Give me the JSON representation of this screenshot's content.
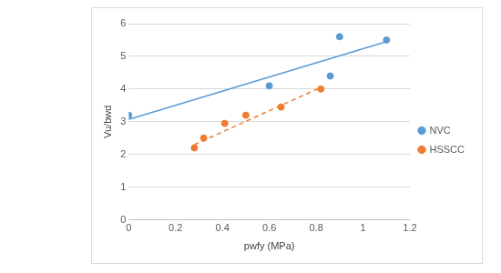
{
  "chart_data": {
    "type": "scatter",
    "x_label": "pwfy (MPa)",
    "y_label": "Vu/bwd",
    "xlim": [
      0,
      1.2
    ],
    "xticks": [
      0,
      0.2,
      0.4,
      0.6,
      0.8,
      1,
      1.2
    ],
    "ylim": [
      0,
      6
    ],
    "yticks": [
      0,
      1,
      2,
      3,
      4,
      5,
      6
    ],
    "grid": true,
    "legend": "right",
    "series": [
      {
        "name": "NVC",
        "color": "#5b9bd5",
        "marker": "circle",
        "x": [
          0,
          0.6,
          0.86,
          0.9,
          1.1
        ],
        "values": [
          3.2,
          4.1,
          4.4,
          5.6,
          5.5
        ],
        "trend": {
          "x": [
            0,
            1.1
          ],
          "values": [
            3.07,
            5.45
          ],
          "line_style": "solid"
        }
      },
      {
        "name": "HSSCC",
        "color": "#ed7d31",
        "marker": "circle",
        "x": [
          0.28,
          0.32,
          0.41,
          0.5,
          0.65,
          0.82
        ],
        "values": [
          2.2,
          2.5,
          2.95,
          3.2,
          3.45,
          4.0
        ],
        "trend": {
          "x": [
            0.28,
            0.82
          ],
          "values": [
            2.3,
            4.05
          ],
          "line_style": "dashed"
        }
      }
    ]
  }
}
